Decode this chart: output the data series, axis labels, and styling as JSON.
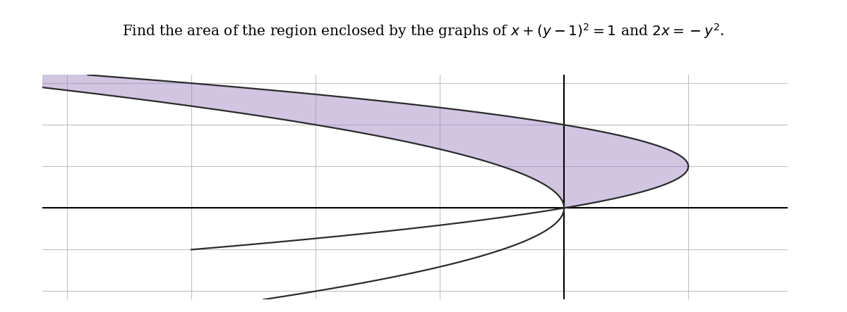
{
  "title": "Find the area of the region enclosed by the graphs of $x + (y - 1)^2 = 1$ and $2x = -y^2$.",
  "title_fontsize": 14.5,
  "background_color": "#ffffff",
  "grid_color": "#bbbbbb",
  "fill_color": "#9980c0",
  "fill_alpha": 0.45,
  "curve_color": "#2b2b2b",
  "curve_lw": 1.6,
  "axis_color": "#000000",
  "axis_lw": 1.5,
  "y_min": -2.2,
  "y_max": 3.2,
  "x_min": -4.2,
  "x_max": 1.8,
  "figsize": [
    12.0,
    4.43
  ],
  "dpi": 100
}
